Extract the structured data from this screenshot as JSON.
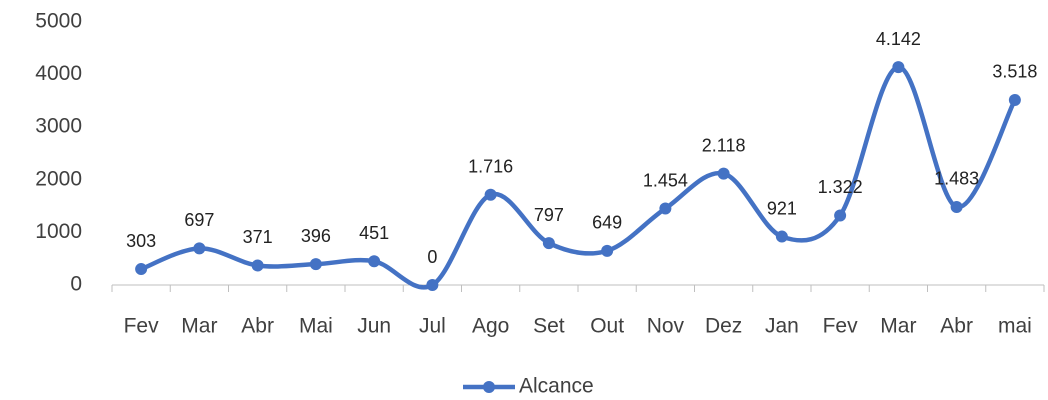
{
  "chart_data": {
    "type": "line",
    "categories": [
      "Fev",
      "Mar",
      "Abr",
      "Mai",
      "Jun",
      "Jul",
      "Ago",
      "Set",
      "Out",
      "Nov",
      "Dez",
      "Jan",
      "Fev",
      "Mar",
      "Abr",
      "mai"
    ],
    "series": [
      {
        "name": "Alcance",
        "color": "#4472c4",
        "values": [
          303,
          697,
          371,
          396,
          451,
          0,
          1716,
          797,
          649,
          1454,
          2118,
          921,
          1322,
          4142,
          1483,
          3518
        ],
        "value_labels": [
          "303",
          "697",
          "371",
          "396",
          "451",
          "0",
          "1.716",
          "797",
          "649",
          "1.454",
          "2.118",
          "921",
          "1.322",
          "4.142",
          "1.483",
          "3.518"
        ]
      }
    ],
    "ylim": [
      0,
      5000
    ],
    "yticks": [
      0,
      1000,
      2000,
      3000,
      4000,
      5000
    ],
    "grid": false,
    "legend": "bottom",
    "smooth": true
  }
}
